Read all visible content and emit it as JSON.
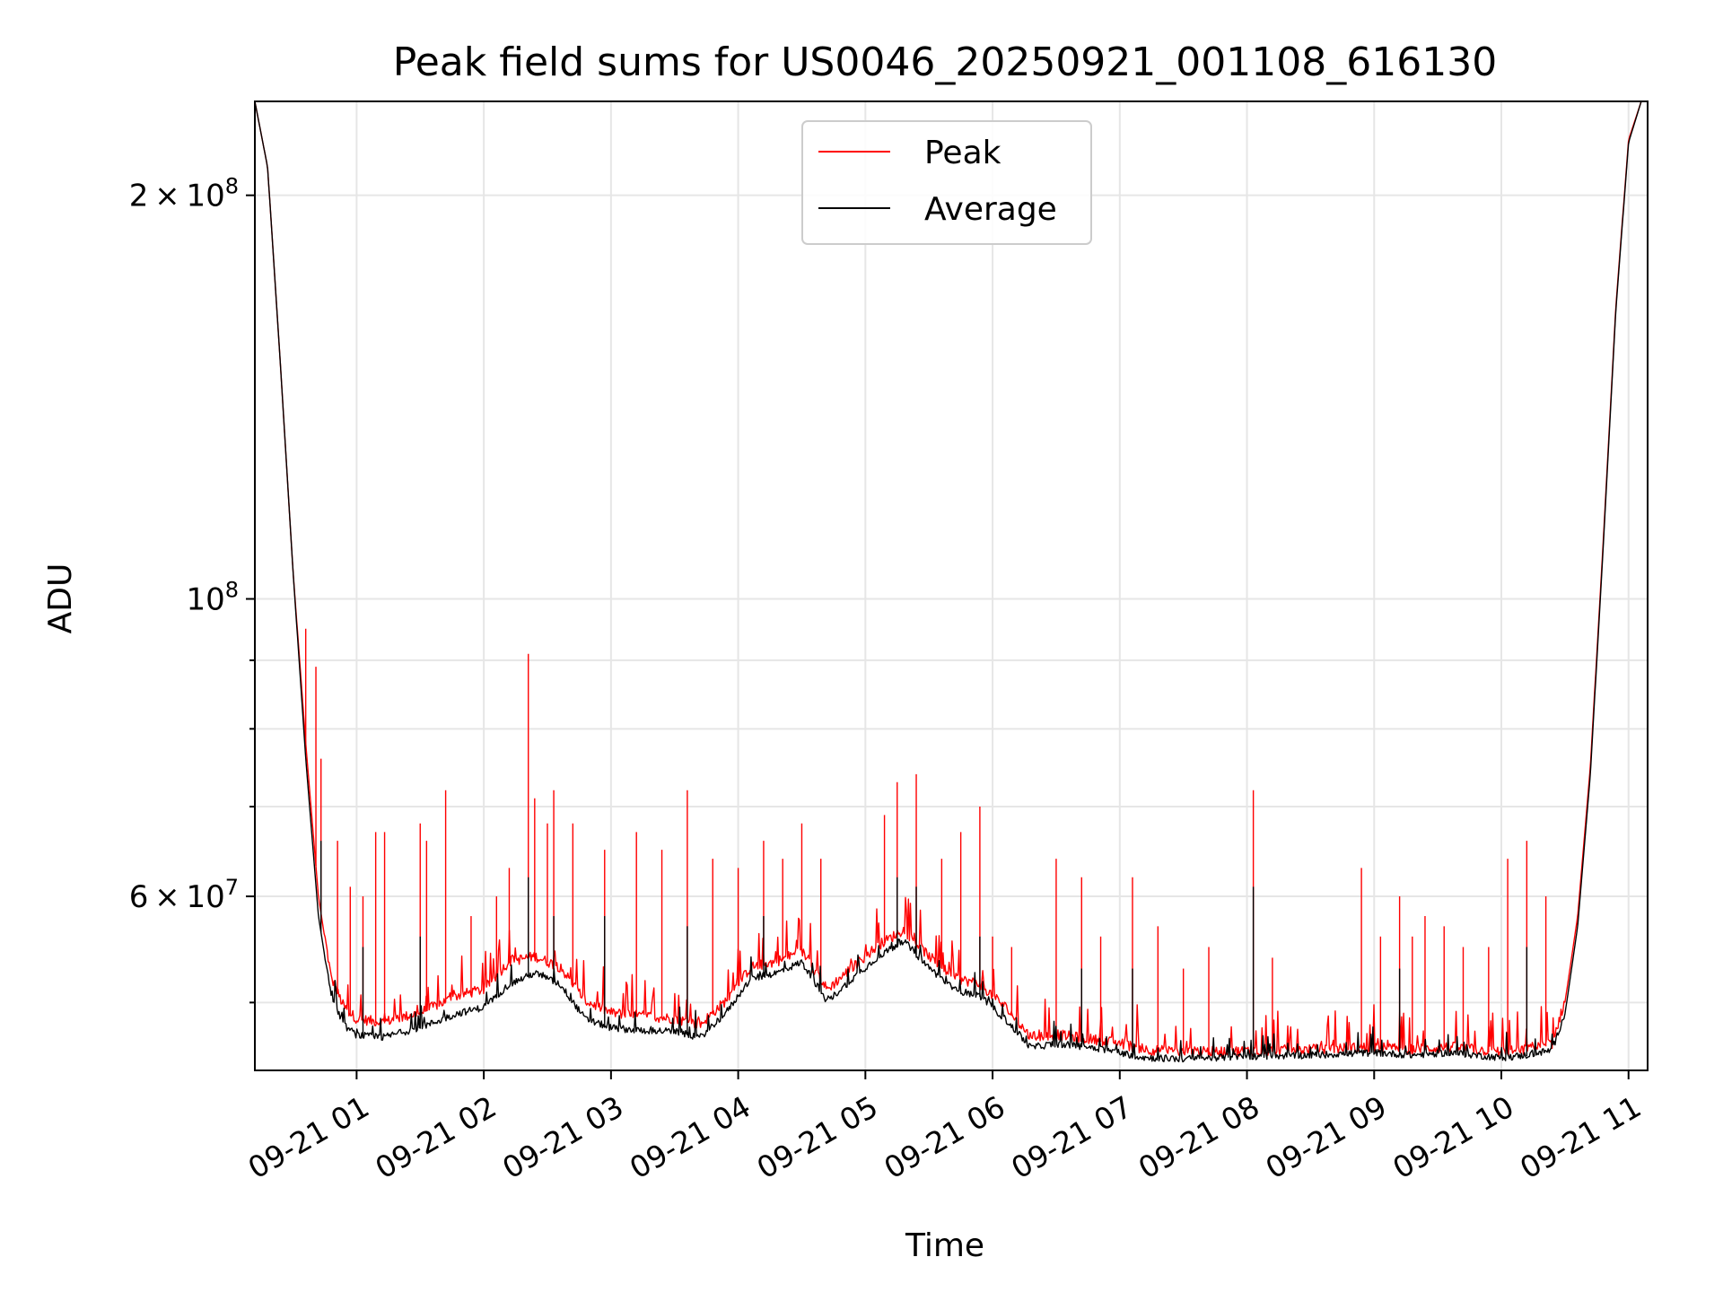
{
  "chart_data": {
    "type": "line",
    "title": "Peak field sums for US0046_20250921_001108_616130",
    "xlabel": "Time",
    "ylabel": "ADU",
    "yscale": "log",
    "ylim": [
      44500000,
      235000000
    ],
    "xlim_hours": [
      0.2,
      11.15
    ],
    "grid": true,
    "legend_position": "upper center",
    "x_ticks": [
      {
        "hour": 1,
        "label": "09-21 01"
      },
      {
        "hour": 2,
        "label": "09-21 02"
      },
      {
        "hour": 3,
        "label": "09-21 03"
      },
      {
        "hour": 4,
        "label": "09-21 04"
      },
      {
        "hour": 5,
        "label": "09-21 05"
      },
      {
        "hour": 6,
        "label": "09-21 06"
      },
      {
        "hour": 7,
        "label": "09-21 07"
      },
      {
        "hour": 8,
        "label": "09-21 08"
      },
      {
        "hour": 9,
        "label": "09-21 09"
      },
      {
        "hour": 10,
        "label": "09-21 10"
      },
      {
        "hour": 11,
        "label": "09-21 11"
      }
    ],
    "y_ticks_major": [
      {
        "value": 60000000,
        "mantissa": "6",
        "exp": "7"
      },
      {
        "value": 100000000,
        "mantissa": "",
        "exp": "8"
      },
      {
        "value": 200000000,
        "mantissa": "2",
        "exp": "8"
      }
    ],
    "y_ticks_minor": [
      50000000,
      70000000,
      80000000,
      90000000
    ],
    "series": [
      {
        "name": "Peak",
        "color": "#ff0000",
        "baseline": [
          [
            0.2,
            235000000
          ],
          [
            0.3,
            210000000
          ],
          [
            0.4,
            150000000
          ],
          [
            0.5,
            105000000
          ],
          [
            0.6,
            78000000
          ],
          [
            0.7,
            60000000
          ],
          [
            0.8,
            52000000
          ],
          [
            0.9,
            49500000
          ],
          [
            1.0,
            48500000
          ],
          [
            1.2,
            48200000
          ],
          [
            1.5,
            49000000
          ],
          [
            1.8,
            50500000
          ],
          [
            2.0,
            51000000
          ],
          [
            2.2,
            53500000
          ],
          [
            2.4,
            54000000
          ],
          [
            2.6,
            53000000
          ],
          [
            2.8,
            50000000
          ],
          [
            3.0,
            49000000
          ],
          [
            3.2,
            48800000
          ],
          [
            3.5,
            48500000
          ],
          [
            3.7,
            48000000
          ],
          [
            3.9,
            50000000
          ],
          [
            4.1,
            53000000
          ],
          [
            4.3,
            53500000
          ],
          [
            4.5,
            54500000
          ],
          [
            4.7,
            51000000
          ],
          [
            4.9,
            53000000
          ],
          [
            5.1,
            55000000
          ],
          [
            5.3,
            56500000
          ],
          [
            5.5,
            54000000
          ],
          [
            5.7,
            52000000
          ],
          [
            5.9,
            51500000
          ],
          [
            6.1,
            49500000
          ],
          [
            6.3,
            47000000
          ],
          [
            6.5,
            47200000
          ],
          [
            6.8,
            46800000
          ],
          [
            7.0,
            46500000
          ],
          [
            7.2,
            46000000
          ],
          [
            7.5,
            45800000
          ],
          [
            8.0,
            45900000
          ],
          [
            8.5,
            46000000
          ],
          [
            9.0,
            46200000
          ],
          [
            9.3,
            46000000
          ],
          [
            9.6,
            46200000
          ],
          [
            10.0,
            45800000
          ],
          [
            10.2,
            46000000
          ],
          [
            10.4,
            46500000
          ],
          [
            10.5,
            50000000
          ],
          [
            10.6,
            58000000
          ],
          [
            10.7,
            75000000
          ],
          [
            10.8,
            110000000
          ],
          [
            10.9,
            165000000
          ],
          [
            11.0,
            220000000
          ],
          [
            11.1,
            235000000
          ]
        ],
        "spikes": [
          [
            0.6,
            95000000
          ],
          [
            0.68,
            89000000
          ],
          [
            0.72,
            76000000
          ],
          [
            0.85,
            66000000
          ],
          [
            0.95,
            61000000
          ],
          [
            1.05,
            60000000
          ],
          [
            1.15,
            67000000
          ],
          [
            1.22,
            67000000
          ],
          [
            1.5,
            68000000
          ],
          [
            1.55,
            66000000
          ],
          [
            1.7,
            72000000
          ],
          [
            1.9,
            58000000
          ],
          [
            2.1,
            60000000
          ],
          [
            2.2,
            63000000
          ],
          [
            2.35,
            91000000
          ],
          [
            2.4,
            71000000
          ],
          [
            2.5,
            68000000
          ],
          [
            2.55,
            72000000
          ],
          [
            2.7,
            68000000
          ],
          [
            2.95,
            65000000
          ],
          [
            3.2,
            67000000
          ],
          [
            3.4,
            65000000
          ],
          [
            3.6,
            72000000
          ],
          [
            3.8,
            64000000
          ],
          [
            4.0,
            63000000
          ],
          [
            4.2,
            66000000
          ],
          [
            4.35,
            64000000
          ],
          [
            4.5,
            68000000
          ],
          [
            4.65,
            64000000
          ],
          [
            5.15,
            69000000
          ],
          [
            5.25,
            73000000
          ],
          [
            5.4,
            74000000
          ],
          [
            5.6,
            64000000
          ],
          [
            5.75,
            67000000
          ],
          [
            5.9,
            70000000
          ],
          [
            6.0,
            56000000
          ],
          [
            6.15,
            55000000
          ],
          [
            6.5,
            64000000
          ],
          [
            6.7,
            62000000
          ],
          [
            6.85,
            56000000
          ],
          [
            7.1,
            62000000
          ],
          [
            7.3,
            57000000
          ],
          [
            7.5,
            53000000
          ],
          [
            7.7,
            55000000
          ],
          [
            8.05,
            72000000
          ],
          [
            8.2,
            54000000
          ],
          [
            8.9,
            63000000
          ],
          [
            9.05,
            56000000
          ],
          [
            9.2,
            60000000
          ],
          [
            9.3,
            56000000
          ],
          [
            9.4,
            58000000
          ],
          [
            9.55,
            57000000
          ],
          [
            9.7,
            55000000
          ],
          [
            9.9,
            55000000
          ],
          [
            10.05,
            64000000
          ],
          [
            10.2,
            66000000
          ],
          [
            10.35,
            60000000
          ]
        ]
      },
      {
        "name": "Average",
        "color": "#000000",
        "baseline": [
          [
            0.2,
            235000000
          ],
          [
            0.3,
            210000000
          ],
          [
            0.4,
            150000000
          ],
          [
            0.5,
            105000000
          ],
          [
            0.6,
            76000000
          ],
          [
            0.7,
            58000000
          ],
          [
            0.8,
            50500000
          ],
          [
            0.9,
            48000000
          ],
          [
            1.0,
            47200000
          ],
          [
            1.2,
            47000000
          ],
          [
            1.5,
            47800000
          ],
          [
            1.8,
            49000000
          ],
          [
            2.0,
            49500000
          ],
          [
            2.2,
            51500000
          ],
          [
            2.4,
            52500000
          ],
          [
            2.6,
            51500000
          ],
          [
            2.8,
            48500000
          ],
          [
            3.0,
            47800000
          ],
          [
            3.2,
            47600000
          ],
          [
            3.5,
            47500000
          ],
          [
            3.7,
            47000000
          ],
          [
            3.9,
            49000000
          ],
          [
            4.1,
            52000000
          ],
          [
            4.3,
            52500000
          ],
          [
            4.5,
            53500000
          ],
          [
            4.7,
            50000000
          ],
          [
            4.9,
            52000000
          ],
          [
            5.1,
            54000000
          ],
          [
            5.3,
            55500000
          ],
          [
            5.5,
            53000000
          ],
          [
            5.7,
            51000000
          ],
          [
            5.9,
            50500000
          ],
          [
            6.1,
            48500000
          ],
          [
            6.3,
            46200000
          ],
          [
            6.5,
            46500000
          ],
          [
            6.8,
            46200000
          ],
          [
            7.0,
            45800000
          ],
          [
            7.2,
            45400000
          ],
          [
            7.5,
            45300000
          ],
          [
            8.0,
            45500000
          ],
          [
            8.5,
            45600000
          ],
          [
            9.0,
            45800000
          ],
          [
            9.3,
            45600000
          ],
          [
            9.6,
            45800000
          ],
          [
            10.0,
            45400000
          ],
          [
            10.2,
            45600000
          ],
          [
            10.4,
            46000000
          ],
          [
            10.5,
            49000000
          ],
          [
            10.6,
            57000000
          ],
          [
            10.7,
            74000000
          ],
          [
            10.8,
            109000000
          ],
          [
            10.9,
            164000000
          ],
          [
            11.0,
            219000000
          ],
          [
            11.1,
            235000000
          ]
        ],
        "spikes": [
          [
            0.72,
            66000000
          ],
          [
            1.05,
            55000000
          ],
          [
            1.5,
            56000000
          ],
          [
            2.35,
            62000000
          ],
          [
            2.55,
            58000000
          ],
          [
            2.95,
            58000000
          ],
          [
            3.6,
            57000000
          ],
          [
            4.2,
            58000000
          ],
          [
            5.25,
            62000000
          ],
          [
            5.4,
            61000000
          ],
          [
            5.9,
            56000000
          ],
          [
            6.7,
            53000000
          ],
          [
            7.1,
            53000000
          ],
          [
            8.05,
            61000000
          ],
          [
            9.2,
            53000000
          ],
          [
            10.2,
            55000000
          ]
        ]
      }
    ]
  }
}
